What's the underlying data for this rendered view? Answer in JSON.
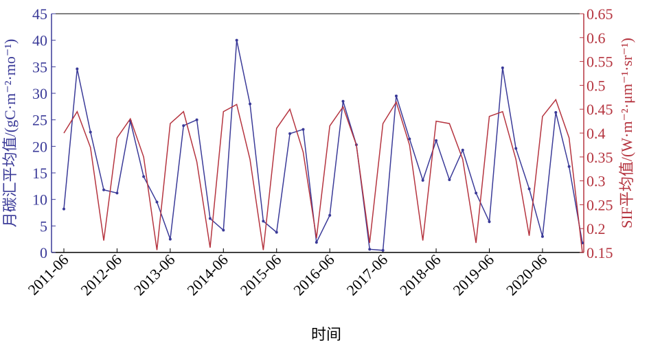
{
  "chart_data": {
    "type": "line",
    "x_label": "时间",
    "y_label": "月碳汇平均值/(gC·m⁻²·mo⁻¹)",
    "y2_label": "SIF平均值/(W·m⁻²·μm⁻¹·sr⁻¹)",
    "categories": [
      "2011-06",
      null,
      null,
      null,
      "2012-06",
      null,
      null,
      null,
      "2013-06",
      null,
      null,
      null,
      "2014-06",
      null,
      null,
      null,
      "2015-06",
      null,
      null,
      null,
      "2016-06",
      null,
      null,
      null,
      "2017-06",
      null,
      null,
      null,
      "2018-06",
      null,
      null,
      null,
      "2019-06",
      null,
      null,
      null,
      "2020-06",
      null,
      null,
      null
    ],
    "ylim": [
      0,
      45
    ],
    "yticks": [
      0,
      5,
      10,
      15,
      20,
      25,
      30,
      35,
      40,
      45
    ],
    "y2lim": [
      0.15,
      0.65
    ],
    "y2ticks": [
      0.15,
      0.2,
      0.25,
      0.3,
      0.35,
      0.4,
      0.45,
      0.5,
      0.55,
      0.6,
      0.65
    ],
    "series": [
      {
        "color": "#3a3a98",
        "values": [
          8.2,
          34.6,
          22.7,
          11.8,
          11.2,
          24.8,
          14.3,
          9.5,
          2.5,
          23.9,
          25.0,
          6.4,
          4.2,
          40.0,
          28.0,
          5.9,
          3.8,
          22.4,
          23.2,
          1.9,
          7.0,
          28.5,
          20.3,
          0.6,
          0.4,
          29.5,
          21.4,
          13.6,
          21.1,
          13.7,
          19.3,
          11.2,
          5.8,
          34.8,
          19.6,
          12.0,
          3.0,
          26.4,
          16.2,
          1.8
        ]
      },
      {
        "color": "#b5343f",
        "axis": "y2",
        "values": [
          0.4,
          0.445,
          0.37,
          0.175,
          0.39,
          0.43,
          0.35,
          0.155,
          0.42,
          0.445,
          0.34,
          0.16,
          0.445,
          0.46,
          0.345,
          0.155,
          0.41,
          0.45,
          0.36,
          0.18,
          0.415,
          0.455,
          0.375,
          0.17,
          0.42,
          0.465,
          0.375,
          0.175,
          0.425,
          0.42,
          0.345,
          0.17,
          0.435,
          0.445,
          0.345,
          0.185,
          0.435,
          0.47,
          0.39,
          0.15
        ]
      }
    ]
  }
}
